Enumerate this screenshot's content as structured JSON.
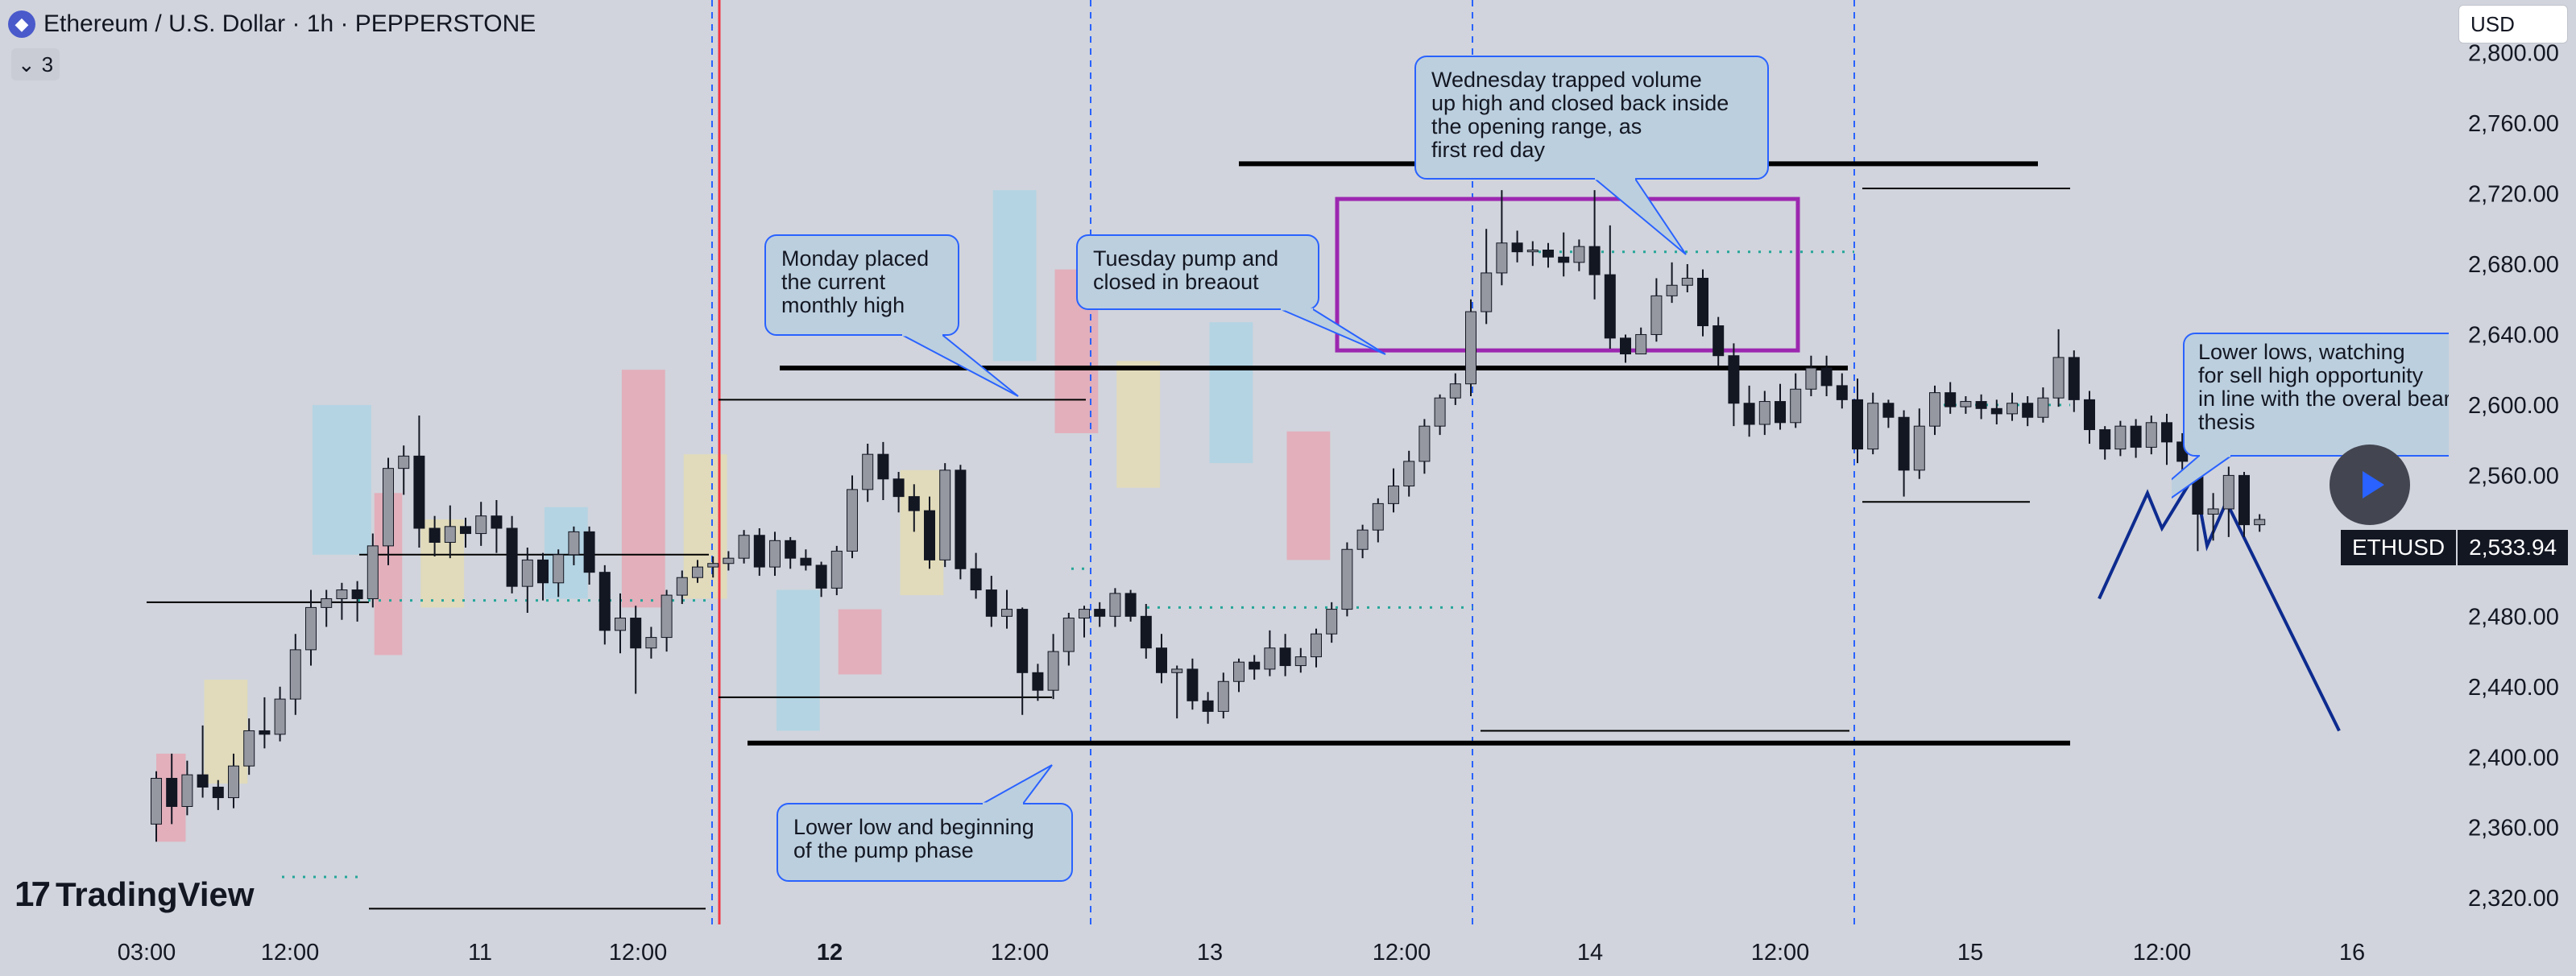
{
  "header": {
    "symbol_title": "Ethereum / U.S. Dollar · 1h · PEPPERSTONE",
    "logo_icon": "ethereum-icon",
    "indicator_count": "3",
    "indicator_toggle_icon": "chevron-down-icon"
  },
  "currency_selector": "USD",
  "brand": "TradingView",
  "play_button_icon": "play-icon",
  "price_tag": {
    "symbol": "ETHUSD",
    "value": "2,533.94"
  },
  "colors": {
    "background": "#d1d4dc",
    "bull_candle": "#9598a1",
    "bear_candle": "#131722",
    "session_line": "#2962ff",
    "month_line": "#f23645",
    "callout_fill": "#bccfdf",
    "callout_border": "#2962ff",
    "opening_box": "#9c27b0",
    "projection": "#0d2b8f",
    "highlight_blue": "#a9d4e6",
    "highlight_red": "#e7a3b0",
    "highlight_yellow": "#e6ddb0"
  },
  "chart_data": {
    "type": "candlestick",
    "y_range": [
      2305,
      2830
    ],
    "y_ticks": [
      "2,800.00",
      "2,760.00",
      "2,720.00",
      "2,680.00",
      "2,640.00",
      "2,600.00",
      "2,560.00",
      "2,520.00",
      "2,480.00",
      "2,440.00",
      "2,400.00",
      "2,360.00",
      "2,320.00"
    ],
    "x_ticks": [
      {
        "label": "03:00",
        "bold": false
      },
      {
        "label": "12:00",
        "bold": false
      },
      {
        "label": "11",
        "bold": false
      },
      {
        "label": "12:00",
        "bold": false
      },
      {
        "label": "12",
        "bold": true
      },
      {
        "label": "12:00",
        "bold": false
      },
      {
        "label": "13",
        "bold": false
      },
      {
        "label": "12:00",
        "bold": false
      },
      {
        "label": "14",
        "bold": false
      },
      {
        "label": "12:00",
        "bold": false
      },
      {
        "label": "15",
        "bold": false
      },
      {
        "label": "12:00",
        "bold": false
      },
      {
        "label": "16",
        "bold": false
      }
    ],
    "candles": [
      [
        2362,
        2388,
        2352,
        2392
      ],
      [
        2388,
        2372,
        2362,
        2402
      ],
      [
        2372,
        2390,
        2367,
        2398
      ],
      [
        2390,
        2383,
        2377,
        2418
      ],
      [
        2383,
        2377,
        2370,
        2387
      ],
      [
        2377,
        2395,
        2371,
        2402
      ],
      [
        2395,
        2415,
        2390,
        2422
      ],
      [
        2415,
        2413,
        2405,
        2434
      ],
      [
        2413,
        2433,
        2409,
        2440
      ],
      [
        2433,
        2461,
        2424,
        2470
      ],
      [
        2461,
        2485,
        2452,
        2495
      ],
      [
        2485,
        2490,
        2474,
        2495
      ],
      [
        2490,
        2495,
        2478,
        2499
      ],
      [
        2495,
        2490,
        2477,
        2500
      ],
      [
        2490,
        2520,
        2485,
        2527
      ],
      [
        2520,
        2564,
        2509,
        2570
      ],
      [
        2564,
        2571,
        2549,
        2577
      ],
      [
        2571,
        2530,
        2519,
        2594
      ],
      [
        2530,
        2522,
        2514,
        2537
      ],
      [
        2522,
        2531,
        2513,
        2543
      ],
      [
        2531,
        2527,
        2519,
        2536
      ],
      [
        2527,
        2537,
        2520,
        2545
      ],
      [
        2537,
        2530,
        2516,
        2546
      ],
      [
        2530,
        2497,
        2493,
        2537
      ],
      [
        2497,
        2512,
        2482,
        2519
      ],
      [
        2512,
        2499,
        2489,
        2516
      ],
      [
        2499,
        2515,
        2491,
        2518
      ],
      [
        2515,
        2528,
        2509,
        2531
      ],
      [
        2528,
        2505,
        2498,
        2531
      ],
      [
        2505,
        2472,
        2464,
        2509
      ],
      [
        2472,
        2479,
        2459,
        2493
      ],
      [
        2479,
        2462,
        2436,
        2486
      ],
      [
        2462,
        2468,
        2456,
        2474
      ],
      [
        2468,
        2492,
        2460,
        2495
      ],
      [
        2492,
        2502,
        2487,
        2506
      ],
      [
        2502,
        2508,
        2499,
        2512
      ],
      [
        2508,
        2510,
        2502,
        2514
      ],
      [
        2510,
        2513,
        2506,
        2517
      ],
      [
        2513,
        2526,
        2510,
        2529
      ],
      [
        2526,
        2508,
        2503,
        2530
      ],
      [
        2508,
        2523,
        2503,
        2528
      ],
      [
        2523,
        2513,
        2507,
        2525
      ],
      [
        2513,
        2509,
        2506,
        2518
      ],
      [
        2509,
        2496,
        2491,
        2511
      ],
      [
        2496,
        2517,
        2492,
        2520
      ],
      [
        2517,
        2552,
        2513,
        2560
      ],
      [
        2552,
        2572,
        2545,
        2578
      ],
      [
        2572,
        2558,
        2546,
        2579
      ],
      [
        2558,
        2548,
        2539,
        2562
      ],
      [
        2548,
        2540,
        2528,
        2555
      ],
      [
        2540,
        2512,
        2507,
        2548
      ],
      [
        2512,
        2563,
        2508,
        2567
      ],
      [
        2563,
        2507,
        2501,
        2566
      ],
      [
        2507,
        2495,
        2490,
        2516
      ],
      [
        2495,
        2480,
        2474,
        2503
      ],
      [
        2480,
        2484,
        2473,
        2495
      ],
      [
        2484,
        2448,
        2424,
        2485
      ],
      [
        2448,
        2438,
        2432,
        2453
      ],
      [
        2438,
        2460,
        2433,
        2470
      ],
      [
        2460,
        2479,
        2452,
        2482
      ],
      [
        2479,
        2484,
        2468,
        2486
      ],
      [
        2484,
        2480,
        2474,
        2488
      ],
      [
        2480,
        2493,
        2474,
        2496
      ],
      [
        2493,
        2480,
        2477,
        2495
      ],
      [
        2480,
        2462,
        2456,
        2487
      ],
      [
        2462,
        2448,
        2442,
        2470
      ],
      [
        2448,
        2450,
        2422,
        2452
      ],
      [
        2450,
        2432,
        2427,
        2456
      ],
      [
        2432,
        2426,
        2419,
        2437
      ],
      [
        2426,
        2443,
        2422,
        2448
      ],
      [
        2443,
        2454,
        2437,
        2456
      ],
      [
        2454,
        2450,
        2444,
        2458
      ],
      [
        2450,
        2462,
        2446,
        2472
      ],
      [
        2462,
        2452,
        2446,
        2470
      ],
      [
        2452,
        2457,
        2448,
        2462
      ],
      [
        2457,
        2470,
        2451,
        2473
      ],
      [
        2470,
        2484,
        2465,
        2488
      ],
      [
        2484,
        2518,
        2480,
        2522
      ],
      [
        2518,
        2529,
        2513,
        2532
      ],
      [
        2529,
        2544,
        2522,
        2547
      ],
      [
        2544,
        2554,
        2539,
        2564
      ],
      [
        2554,
        2568,
        2548,
        2574
      ],
      [
        2568,
        2588,
        2561,
        2592
      ],
      [
        2588,
        2604,
        2583,
        2606
      ],
      [
        2604,
        2612,
        2600,
        2618
      ],
      [
        2612,
        2653,
        2605,
        2660
      ],
      [
        2653,
        2675,
        2646,
        2700
      ],
      [
        2675,
        2692,
        2668,
        2722
      ],
      [
        2692,
        2687,
        2681,
        2699
      ],
      [
        2687,
        2688,
        2679,
        2693
      ],
      [
        2688,
        2684,
        2678,
        2692
      ],
      [
        2684,
        2681,
        2673,
        2698
      ],
      [
        2681,
        2690,
        2676,
        2694
      ],
      [
        2690,
        2674,
        2660,
        2722
      ],
      [
        2674,
        2638,
        2632,
        2702
      ],
      [
        2638,
        2629,
        2624,
        2640
      ],
      [
        2629,
        2640,
        2630,
        2644
      ],
      [
        2640,
        2662,
        2636,
        2672
      ],
      [
        2662,
        2668,
        2658,
        2681
      ],
      [
        2668,
        2672,
        2664,
        2680
      ],
      [
        2672,
        2645,
        2639,
        2677
      ],
      [
        2645,
        2628,
        2622,
        2650
      ],
      [
        2628,
        2601,
        2588,
        2635
      ],
      [
        2601,
        2589,
        2582,
        2611
      ],
      [
        2589,
        2602,
        2583,
        2608
      ],
      [
        2602,
        2590,
        2586,
        2612
      ],
      [
        2590,
        2609,
        2587,
        2618
      ],
      [
        2609,
        2621,
        2605,
        2628
      ],
      [
        2621,
        2611,
        2605,
        2628
      ],
      [
        2611,
        2603,
        2598,
        2618
      ],
      [
        2603,
        2575,
        2567,
        2615
      ],
      [
        2575,
        2601,
        2572,
        2607
      ],
      [
        2601,
        2593,
        2587,
        2603
      ],
      [
        2593,
        2563,
        2548,
        2597
      ],
      [
        2563,
        2588,
        2558,
        2598
      ],
      [
        2588,
        2607,
        2583,
        2611
      ],
      [
        2607,
        2599,
        2595,
        2613
      ],
      [
        2599,
        2602,
        2595,
        2605
      ],
      [
        2602,
        2598,
        2592,
        2606
      ],
      [
        2598,
        2595,
        2589,
        2603
      ],
      [
        2595,
        2601,
        2591,
        2607
      ],
      [
        2601,
        2593,
        2588,
        2605
      ],
      [
        2593,
        2604,
        2590,
        2610
      ],
      [
        2604,
        2627,
        2599,
        2643
      ],
      [
        2627,
        2603,
        2596,
        2631
      ],
      [
        2603,
        2586,
        2578,
        2608
      ],
      [
        2586,
        2575,
        2569,
        2588
      ],
      [
        2575,
        2588,
        2571,
        2591
      ],
      [
        2588,
        2576,
        2570,
        2592
      ],
      [
        2576,
        2590,
        2572,
        2594
      ],
      [
        2590,
        2579,
        2566,
        2595
      ],
      [
        2579,
        2568,
        2561,
        2584
      ],
      [
        2568,
        2538,
        2517,
        2575
      ],
      [
        2538,
        2541,
        2523,
        2550
      ],
      [
        2541,
        2560,
        2525,
        2565
      ],
      [
        2560,
        2532,
        2525,
        2562
      ],
      [
        2532,
        2535,
        2528,
        2538
      ]
    ],
    "zones": [
      {
        "color": "red",
        "x": [
          0,
          1.9
        ],
        "y": [
          2352,
          2402
        ]
      },
      {
        "color": "yellow",
        "x": [
          3.1,
          5.9
        ],
        "y": [
          2385,
          2444
        ]
      },
      {
        "color": "blue",
        "x": [
          10.1,
          13.9
        ],
        "y": [
          2515,
          2600
        ]
      },
      {
        "color": "red",
        "x": [
          14.1,
          15.9
        ],
        "y": [
          2458,
          2550
        ]
      },
      {
        "color": "yellow",
        "x": [
          17.1,
          19.9
        ],
        "y": [
          2485,
          2535
        ]
      },
      {
        "color": "blue",
        "x": [
          25.1,
          27.9
        ],
        "y": [
          2490,
          2542
        ]
      },
      {
        "color": "red",
        "x": [
          30.1,
          32.9
        ],
        "y": [
          2485,
          2620
        ]
      },
      {
        "color": "yellow",
        "x": [
          34.1,
          36.9
        ],
        "y": [
          2490,
          2572
        ]
      },
      {
        "color": "blue",
        "x": [
          40.1,
          42.9
        ],
        "y": [
          2415,
          2495
        ]
      },
      {
        "color": "red",
        "x": [
          44.1,
          46.9
        ],
        "y": [
          2447,
          2484
        ]
      },
      {
        "color": "yellow",
        "x": [
          48.1,
          50.9
        ],
        "y": [
          2492,
          2563
        ]
      },
      {
        "color": "blue",
        "x": [
          54.1,
          56.9
        ],
        "y": [
          2625,
          2722
        ]
      },
      {
        "color": "red",
        "x": [
          58.1,
          60.9
        ],
        "y": [
          2584,
          2677
        ]
      },
      {
        "color": "yellow",
        "x": [
          62.1,
          64.9
        ],
        "y": [
          2553,
          2625
        ]
      },
      {
        "color": "blue",
        "x": [
          68.1,
          70.9
        ],
        "y": [
          2567,
          2647
        ]
      },
      {
        "color": "red",
        "x": [
          73.1,
          75.9
        ],
        "y": [
          2512,
          2585
        ]
      }
    ]
  },
  "annotations": {
    "monday": [
      "Monday placed",
      "the current",
      "monthly high"
    ],
    "tuesday": [
      "Tuesday pump and",
      "closed in breaout"
    ],
    "wednesday": [
      "Wednesday trapped volume",
      "up high and closed back inside",
      "the opening range, as",
      "first red day"
    ],
    "lower_low": [
      "Lower low and beginning",
      "of the pump phase"
    ],
    "lower_lows_right": [
      "Lower lows, watching",
      "for sell high opportunity",
      "in line with the overal bearish",
      "thesis"
    ]
  },
  "projection_path": [
    2490,
    2550,
    2530,
    2560,
    2520,
    2545,
    2415
  ]
}
